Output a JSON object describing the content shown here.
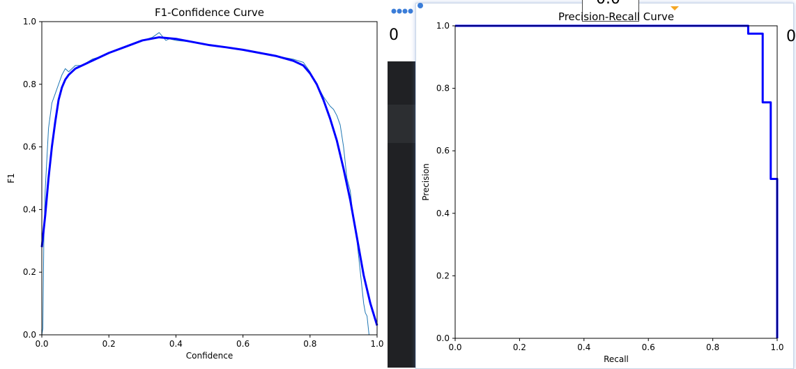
{
  "colors": {
    "thin_line": "#1f77b4",
    "thick_line": "#0000ff",
    "dark_panel": "#202124",
    "mid_panel": "#2c2e31",
    "accent_blue": "#3b7dd8",
    "accent_orange": "#f5a623"
  },
  "background_window": {
    "partial_value_left": "0",
    "partial_value_mid": "0.0"
  },
  "chart_data": [
    {
      "type": "line",
      "title": "F1-Confidence Curve",
      "xlabel": "Confidence",
      "ylabel": "F1",
      "xlim": [
        0,
        1
      ],
      "ylim": [
        0,
        1
      ],
      "xticks": [
        "0.0",
        "0.2",
        "0.4",
        "0.6",
        "0.8",
        "1.0"
      ],
      "yticks": [
        "0.0",
        "0.2",
        "0.4",
        "0.6",
        "0.8",
        "1.0"
      ],
      "grid": false,
      "series": [
        {
          "style": "thin",
          "x": [
            0.0,
            0.003,
            0.006,
            0.01,
            0.015,
            0.02,
            0.025,
            0.03,
            0.04,
            0.05,
            0.06,
            0.07,
            0.08,
            0.09,
            0.1,
            0.12,
            0.15,
            0.18,
            0.2,
            0.25,
            0.3,
            0.33,
            0.35,
            0.37,
            0.38,
            0.4,
            0.45,
            0.5,
            0.6,
            0.7,
            0.75,
            0.78,
            0.8,
            0.82,
            0.84,
            0.86,
            0.87,
            0.88,
            0.89,
            0.9,
            0.91,
            0.92,
            0.93,
            0.94,
            0.95,
            0.96,
            0.965,
            0.97,
            0.973,
            0.976
          ],
          "y": [
            0.0,
            0.02,
            0.3,
            0.46,
            0.56,
            0.66,
            0.7,
            0.74,
            0.77,
            0.8,
            0.83,
            0.85,
            0.84,
            0.85,
            0.86,
            0.86,
            0.88,
            0.89,
            0.9,
            0.92,
            0.94,
            0.95,
            0.965,
            0.94,
            0.945,
            0.94,
            0.935,
            0.925,
            0.91,
            0.89,
            0.88,
            0.87,
            0.84,
            0.8,
            0.76,
            0.73,
            0.72,
            0.7,
            0.67,
            0.6,
            0.5,
            0.46,
            0.36,
            0.3,
            0.2,
            0.1,
            0.07,
            0.06,
            0.03,
            0.0
          ]
        },
        {
          "style": "thick",
          "x": [
            0.0,
            0.01,
            0.02,
            0.03,
            0.04,
            0.05,
            0.06,
            0.07,
            0.08,
            0.1,
            0.12,
            0.15,
            0.2,
            0.25,
            0.3,
            0.35,
            0.4,
            0.45,
            0.5,
            0.55,
            0.6,
            0.65,
            0.7,
            0.75,
            0.78,
            0.8,
            0.82,
            0.84,
            0.86,
            0.88,
            0.9,
            0.92,
            0.94,
            0.96,
            0.98,
            1.0
          ],
          "y": [
            0.28,
            0.38,
            0.5,
            0.6,
            0.68,
            0.75,
            0.79,
            0.815,
            0.83,
            0.85,
            0.86,
            0.875,
            0.9,
            0.92,
            0.94,
            0.95,
            0.945,
            0.935,
            0.925,
            0.918,
            0.91,
            0.9,
            0.89,
            0.875,
            0.86,
            0.835,
            0.8,
            0.75,
            0.69,
            0.62,
            0.53,
            0.43,
            0.31,
            0.19,
            0.1,
            0.03
          ]
        }
      ]
    },
    {
      "type": "line",
      "title": "Precision-Recall Curve",
      "xlabel": "Recall",
      "ylabel": "Precision",
      "xlim": [
        0,
        1
      ],
      "ylim": [
        0,
        1
      ],
      "xticks": [
        "0.0",
        "0.2",
        "0.4",
        "0.6",
        "0.8",
        "1.0"
      ],
      "yticks": [
        "0.0",
        "0.2",
        "0.4",
        "0.6",
        "0.8",
        "1.0"
      ],
      "grid": false,
      "series": [
        {
          "style": "thin",
          "x": [
            0.0,
            0.99,
            0.99,
            1.0,
            1.0
          ],
          "y": [
            1.0,
            1.0,
            1.0,
            1.0,
            0.0
          ]
        },
        {
          "style": "thick",
          "x": [
            0.0,
            0.91,
            0.91,
            0.955,
            0.955,
            0.98,
            0.98,
            0.985,
            0.985,
            1.0,
            1.0
          ],
          "y": [
            1.0,
            1.0,
            0.975,
            0.975,
            0.755,
            0.755,
            0.51,
            0.51,
            0.51,
            0.51,
            0.0
          ]
        }
      ]
    }
  ]
}
